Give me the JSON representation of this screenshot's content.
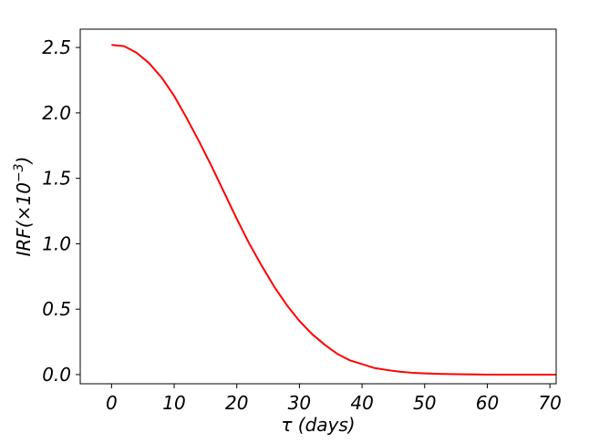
{
  "chart_data": {
    "type": "line",
    "title": "",
    "xlabel": "τ (days)",
    "ylabel": "IRF(×10⁻³)",
    "ylabel_base": "IRF(×10",
    "ylabel_exp": "−3",
    "ylabel_close": ")",
    "xlim": [
      -5,
      71
    ],
    "ylim": [
      -0.07,
      2.64
    ],
    "x_ticks": [
      0,
      10,
      20,
      30,
      40,
      50,
      60,
      70
    ],
    "x_tick_labels": [
      "0",
      "10",
      "20",
      "30",
      "40",
      "50",
      "60",
      "70"
    ],
    "y_ticks": [
      0.0,
      0.5,
      1.0,
      1.5,
      2.0,
      2.5
    ],
    "y_tick_labels": [
      "0.0",
      "0.5",
      "1.0",
      "1.5",
      "2.0",
      "2.5"
    ],
    "grid": false,
    "series": [
      {
        "color": "#ff0000",
        "x": [
          0,
          2,
          4,
          6,
          8,
          10,
          12,
          14,
          16,
          18,
          20,
          22,
          24,
          26,
          28,
          30,
          32,
          34,
          36,
          38,
          40,
          42,
          44,
          46,
          48,
          50,
          52,
          54,
          56,
          58,
          60,
          62,
          64,
          66,
          68,
          70,
          71
        ],
        "values": [
          2.52,
          2.51,
          2.46,
          2.38,
          2.27,
          2.13,
          1.96,
          1.78,
          1.59,
          1.39,
          1.19,
          1.0,
          0.83,
          0.67,
          0.53,
          0.41,
          0.31,
          0.23,
          0.16,
          0.11,
          0.08,
          0.05,
          0.035,
          0.022,
          0.014,
          0.009,
          0.006,
          0.004,
          0.002,
          0.001,
          0.0,
          0.0,
          0.0,
          0.0,
          0.0,
          0.0,
          0.0
        ]
      }
    ]
  }
}
